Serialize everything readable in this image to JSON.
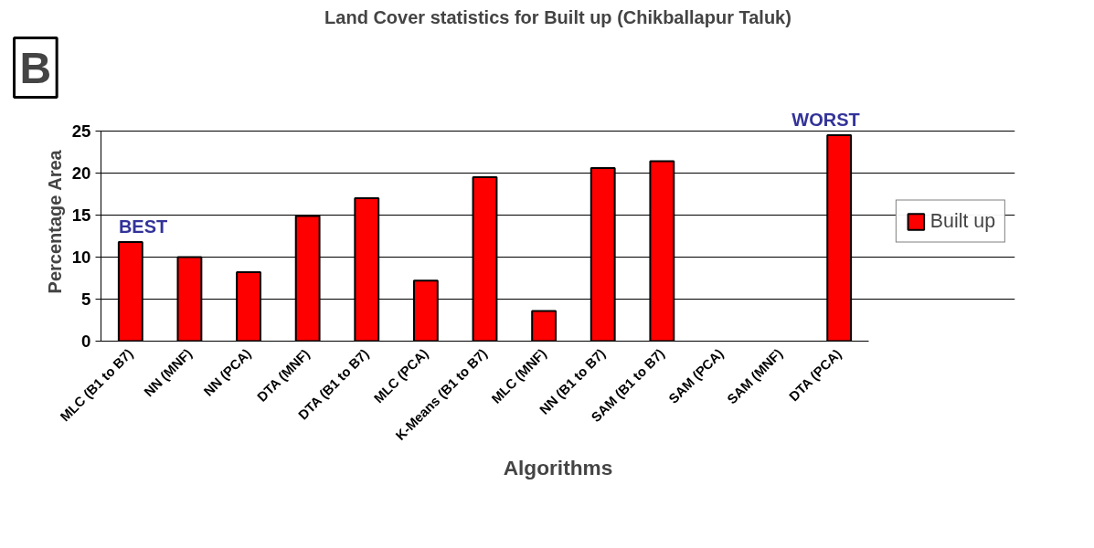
{
  "chart_data": {
    "type": "bar",
    "title": "Land Cover statistics for Built up (Chikballapur Taluk)",
    "xlabel": "Algorithms",
    "ylabel": "Percentage Area",
    "categories": [
      "MLC (B1 to B7)",
      "NN (MNF)",
      "NN (PCA)",
      "DTA (MNF)",
      "DTA (B1 to B7)",
      "MLC (PCA)",
      "K-Means (B1 to B7)",
      "MLC (MNF)",
      "NN (B1 to B7)",
      "SAM (B1 to B7)",
      "SAM (PCA)",
      "SAM (MNF)",
      "DTA (PCA)"
    ],
    "series": [
      {
        "name": "Built up",
        "color": "#ff0000",
        "values": [
          11.8,
          10.0,
          8.2,
          14.9,
          17.0,
          7.2,
          19.5,
          3.6,
          20.6,
          21.4,
          0,
          0,
          24.5
        ]
      }
    ],
    "ylim": [
      0,
      25
    ],
    "yticks": [
      0,
      5,
      10,
      15,
      20,
      25
    ],
    "grid": "y",
    "legend": "right",
    "annotations": [
      "B",
      {
        "text": "BEST",
        "x": "MLC (B1 to B7)",
        "y": 11.8
      },
      {
        "text": "WORST",
        "x": "DTA (PCA)",
        "y": 24.5
      }
    ]
  }
}
